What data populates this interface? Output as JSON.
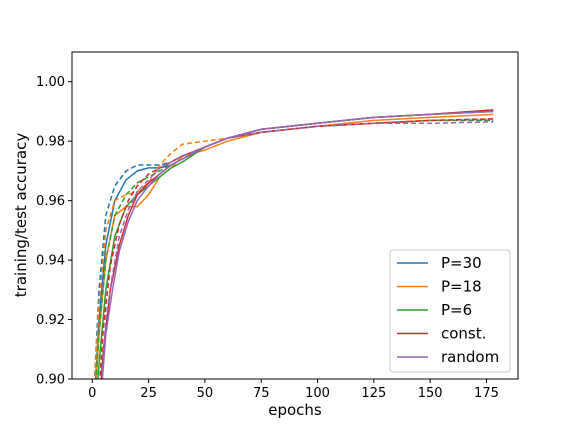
{
  "chart_data": {
    "type": "line",
    "xlabel": "epochs",
    "ylabel": "training/test accuracy",
    "xlim": [
      -9,
      189
    ],
    "ylim": [
      0.9,
      1.01
    ],
    "xticks": [
      0,
      25,
      50,
      75,
      100,
      125,
      150,
      175
    ],
    "yticks": [
      0.9,
      0.92,
      0.94,
      0.96,
      0.98,
      1.0
    ],
    "ytick_labels": [
      "0.90",
      "0.92",
      "0.94",
      "0.96",
      "0.98",
      "1.00"
    ],
    "grid": false,
    "legend_position": "lower-right",
    "legend": [
      {
        "label": "P=30",
        "color": "#1f77b4"
      },
      {
        "label": "P=18",
        "color": "#ff7f0e"
      },
      {
        "label": "P=6",
        "color": "#2ca02c"
      },
      {
        "label": "const.",
        "color": "#d62728"
      },
      {
        "label": "random",
        "color": "#9467bd"
      }
    ],
    "series": [
      {
        "name": "P=30",
        "color": "#1f77b4",
        "style": "solid",
        "x": [
          0,
          3,
          6,
          10,
          15,
          20,
          25,
          30,
          35,
          40,
          50,
          60,
          75,
          100,
          125,
          150,
          178
        ],
        "y": [
          0.88,
          0.92,
          0.945,
          0.96,
          0.967,
          0.97,
          0.971,
          0.971,
          0.972,
          0.974,
          0.978,
          0.981,
          0.984,
          0.986,
          0.988,
          0.989,
          0.9905
        ]
      },
      {
        "name": "P=30",
        "color": "#1f77b4",
        "style": "dashed",
        "x": [
          0,
          3,
          6,
          10,
          15,
          20,
          25,
          30,
          35,
          40,
          50,
          60,
          75,
          100,
          125,
          150,
          178
        ],
        "y": [
          0.885,
          0.93,
          0.955,
          0.965,
          0.97,
          0.972,
          0.972,
          0.972,
          0.973,
          0.975,
          0.978,
          0.981,
          0.983,
          0.985,
          0.986,
          0.987,
          0.987
        ]
      },
      {
        "name": "P=18",
        "color": "#ff7f0e",
        "style": "solid",
        "x": [
          0,
          3,
          6,
          10,
          15,
          20,
          25,
          30,
          35,
          40,
          50,
          60,
          75,
          100,
          125,
          150,
          178
        ],
        "y": [
          0.88,
          0.915,
          0.94,
          0.955,
          0.958,
          0.958,
          0.962,
          0.968,
          0.971,
          0.975,
          0.977,
          0.98,
          0.983,
          0.985,
          0.987,
          0.988,
          0.989
        ]
      },
      {
        "name": "P=18",
        "color": "#ff7f0e",
        "style": "dashed",
        "x": [
          0,
          3,
          6,
          10,
          15,
          20,
          25,
          30,
          35,
          40,
          50,
          60,
          75,
          100,
          125,
          150,
          178
        ],
        "y": [
          0.885,
          0.925,
          0.95,
          0.96,
          0.962,
          0.963,
          0.966,
          0.972,
          0.976,
          0.979,
          0.98,
          0.981,
          0.983,
          0.985,
          0.986,
          0.987,
          0.9875
        ]
      },
      {
        "name": "P=6",
        "color": "#2ca02c",
        "style": "solid",
        "x": [
          0,
          3,
          6,
          10,
          15,
          20,
          25,
          30,
          35,
          40,
          50,
          60,
          75,
          100,
          125,
          150,
          178
        ],
        "y": [
          0.875,
          0.905,
          0.93,
          0.948,
          0.958,
          0.962,
          0.965,
          0.968,
          0.971,
          0.973,
          0.978,
          0.981,
          0.984,
          0.986,
          0.988,
          0.989,
          0.99
        ]
      },
      {
        "name": "P=6",
        "color": "#2ca02c",
        "style": "dashed",
        "x": [
          0,
          3,
          6,
          10,
          15,
          20,
          25,
          30,
          35,
          40,
          50,
          60,
          75,
          100,
          125,
          150,
          178
        ],
        "y": [
          0.88,
          0.915,
          0.94,
          0.955,
          0.962,
          0.966,
          0.968,
          0.97,
          0.972,
          0.974,
          0.978,
          0.981,
          0.983,
          0.985,
          0.986,
          0.987,
          0.987
        ]
      },
      {
        "name": "const.",
        "color": "#d62728",
        "style": "solid",
        "x": [
          2,
          5,
          8,
          12,
          16,
          20,
          25,
          30,
          35,
          40,
          50,
          60,
          75,
          100,
          125,
          150,
          178
        ],
        "y": [
          0.88,
          0.91,
          0.93,
          0.945,
          0.955,
          0.962,
          0.966,
          0.969,
          0.972,
          0.974,
          0.978,
          0.981,
          0.984,
          0.986,
          0.988,
          0.989,
          0.9905
        ]
      },
      {
        "name": "const.",
        "color": "#d62728",
        "style": "dashed",
        "x": [
          2,
          5,
          8,
          12,
          16,
          20,
          25,
          30,
          35,
          40,
          50,
          60,
          75,
          100,
          125,
          150,
          178
        ],
        "y": [
          0.885,
          0.918,
          0.938,
          0.952,
          0.96,
          0.965,
          0.969,
          0.971,
          0.973,
          0.975,
          0.978,
          0.981,
          0.983,
          0.985,
          0.986,
          0.987,
          0.9875
        ]
      },
      {
        "name": "random",
        "color": "#9467bd",
        "style": "solid",
        "x": [
          3,
          6,
          9,
          12,
          16,
          20,
          25,
          30,
          35,
          40,
          50,
          60,
          75,
          100,
          125,
          150,
          178
        ],
        "y": [
          0.885,
          0.915,
          0.93,
          0.943,
          0.953,
          0.96,
          0.965,
          0.969,
          0.972,
          0.974,
          0.978,
          0.981,
          0.984,
          0.986,
          0.988,
          0.989,
          0.99
        ]
      },
      {
        "name": "random",
        "color": "#9467bd",
        "style": "dashed",
        "x": [
          3,
          6,
          9,
          12,
          16,
          20,
          25,
          30,
          35,
          40,
          50,
          60,
          75,
          100,
          125,
          150,
          178
        ],
        "y": [
          0.885,
          0.92,
          0.935,
          0.948,
          0.957,
          0.963,
          0.967,
          0.971,
          0.973,
          0.975,
          0.978,
          0.981,
          0.983,
          0.985,
          0.986,
          0.986,
          0.9865
        ]
      }
    ]
  }
}
